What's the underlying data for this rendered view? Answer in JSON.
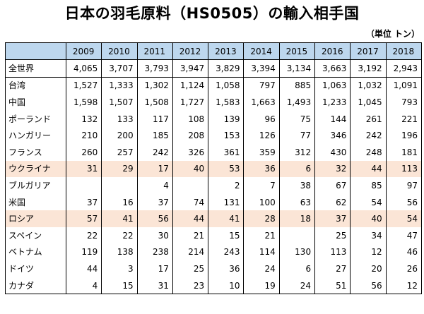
{
  "title": "日本の羽毛原料（HS0505）の輸入相手国",
  "unit": "（単位 トン）",
  "years": [
    "2009",
    "2010",
    "2011",
    "2012",
    "2013",
    "2014",
    "2015",
    "2016",
    "2017",
    "2018"
  ],
  "rows": [
    {
      "label": "全世界",
      "values": [
        "4,065",
        "3,707",
        "3,793",
        "3,947",
        "3,829",
        "3,394",
        "3,134",
        "3,663",
        "3,192",
        "2,943"
      ],
      "highlight": false,
      "total": true
    },
    {
      "label": "台湾",
      "values": [
        "1,527",
        "1,333",
        "1,302",
        "1,124",
        "1,058",
        "797",
        "885",
        "1,063",
        "1,032",
        "1,091"
      ],
      "highlight": false
    },
    {
      "label": "中国",
      "values": [
        "1,598",
        "1,507",
        "1,508",
        "1,727",
        "1,583",
        "1,663",
        "1,493",
        "1,233",
        "1,045",
        "793"
      ],
      "highlight": false
    },
    {
      "label": "ポーランド",
      "values": [
        "132",
        "133",
        "117",
        "108",
        "139",
        "96",
        "75",
        "144",
        "261",
        "221"
      ],
      "highlight": false
    },
    {
      "label": "ハンガリー",
      "values": [
        "210",
        "200",
        "185",
        "208",
        "153",
        "126",
        "77",
        "346",
        "242",
        "196"
      ],
      "highlight": false
    },
    {
      "label": "フランス",
      "values": [
        "260",
        "257",
        "242",
        "326",
        "361",
        "359",
        "312",
        "430",
        "248",
        "181"
      ],
      "highlight": false
    },
    {
      "label": "ウクライナ",
      "values": [
        "31",
        "29",
        "17",
        "40",
        "53",
        "36",
        "6",
        "32",
        "44",
        "113"
      ],
      "highlight": true
    },
    {
      "label": "ブルガリア",
      "values": [
        "",
        "",
        "4",
        "",
        "2",
        "7",
        "38",
        "67",
        "85",
        "97"
      ],
      "highlight": false
    },
    {
      "label": "米国",
      "values": [
        "37",
        "16",
        "37",
        "74",
        "131",
        "100",
        "63",
        "62",
        "54",
        "56"
      ],
      "highlight": false
    },
    {
      "label": "ロシア",
      "values": [
        "57",
        "41",
        "56",
        "44",
        "41",
        "28",
        "18",
        "37",
        "40",
        "54"
      ],
      "highlight": true
    },
    {
      "label": "スペイン",
      "values": [
        "22",
        "22",
        "30",
        "21",
        "15",
        "21",
        "",
        "25",
        "34",
        "47"
      ],
      "highlight": false
    },
    {
      "label": "ベトナム",
      "values": [
        "119",
        "138",
        "238",
        "214",
        "243",
        "114",
        "130",
        "113",
        "12",
        "46"
      ],
      "highlight": false
    },
    {
      "label": "ドイツ",
      "values": [
        "44",
        "3",
        "17",
        "25",
        "36",
        "24",
        "6",
        "27",
        "20",
        "26"
      ],
      "highlight": false
    },
    {
      "label": "カナダ",
      "values": [
        "4",
        "15",
        "31",
        "23",
        "10",
        "19",
        "24",
        "51",
        "56",
        "12"
      ],
      "highlight": false
    }
  ]
}
